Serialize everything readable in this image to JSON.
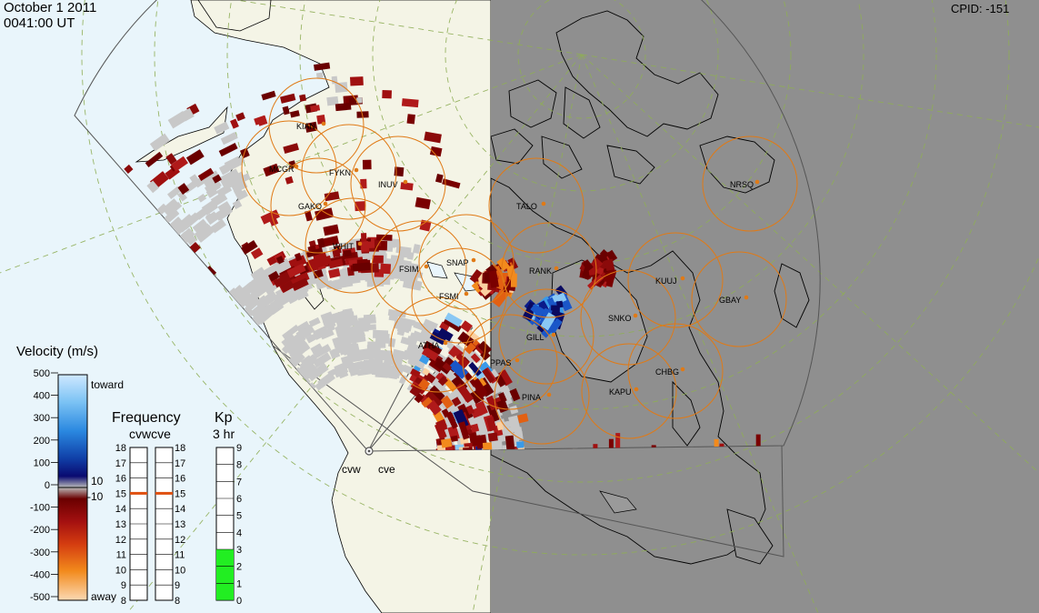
{
  "header": {
    "date": "October 1 2011",
    "time": "0041:00 UT",
    "cpid": "CPID:  -151"
  },
  "colors": {
    "ocean": "#e9f5fb",
    "land": "#f4f4e6",
    "night": "#8f8f8f",
    "ground_scatter": "#c8c8c8",
    "fov_circle": "#e07a16",
    "kp_bar": "#22ee22",
    "freq_marker": "#e05010"
  },
  "stations": [
    {
      "code": "KIAN"
    },
    {
      "code": "MCGR"
    },
    {
      "code": "FYKN"
    },
    {
      "code": "INUV"
    },
    {
      "code": "GAKO"
    },
    {
      "code": "TALO"
    },
    {
      "code": "WHIT"
    },
    {
      "code": "FSIM"
    },
    {
      "code": "SNAP"
    },
    {
      "code": "RANK"
    },
    {
      "code": "FSMI"
    },
    {
      "code": "SNKO"
    },
    {
      "code": "GILL"
    },
    {
      "code": "ATHA"
    },
    {
      "code": "PPAS"
    },
    {
      "code": "CHBG"
    },
    {
      "code": "PINA"
    },
    {
      "code": "KAPU"
    },
    {
      "code": "KUUJ"
    },
    {
      "code": "GBAY"
    },
    {
      "code": "NRSQ"
    }
  ],
  "radars": {
    "west": "cvw",
    "east": "cve"
  },
  "velocity_scale": {
    "title": "Velocity (m/s)",
    "ticks": [
      "500",
      "400",
      "300",
      "200",
      "100",
      "0",
      "-100",
      "-200",
      "-300",
      "-400",
      "-500"
    ],
    "toward": "toward",
    "away": "away",
    "threshold_pos": "10",
    "threshold_neg": "-10"
  },
  "frequency": {
    "title": "Frequency",
    "sub": "cvwcve",
    "ticks": [
      "18",
      "17",
      "16",
      "15",
      "14",
      "13",
      "12",
      "11",
      "10",
      "9",
      "8"
    ],
    "cvw_mhz": 15,
    "cve_mhz": 15
  },
  "kp": {
    "title": "Kp",
    "sub": "3 hr",
    "ticks": [
      "9",
      "8",
      "7",
      "6",
      "5",
      "4",
      "3",
      "2",
      "1",
      "0"
    ],
    "value": 3
  }
}
